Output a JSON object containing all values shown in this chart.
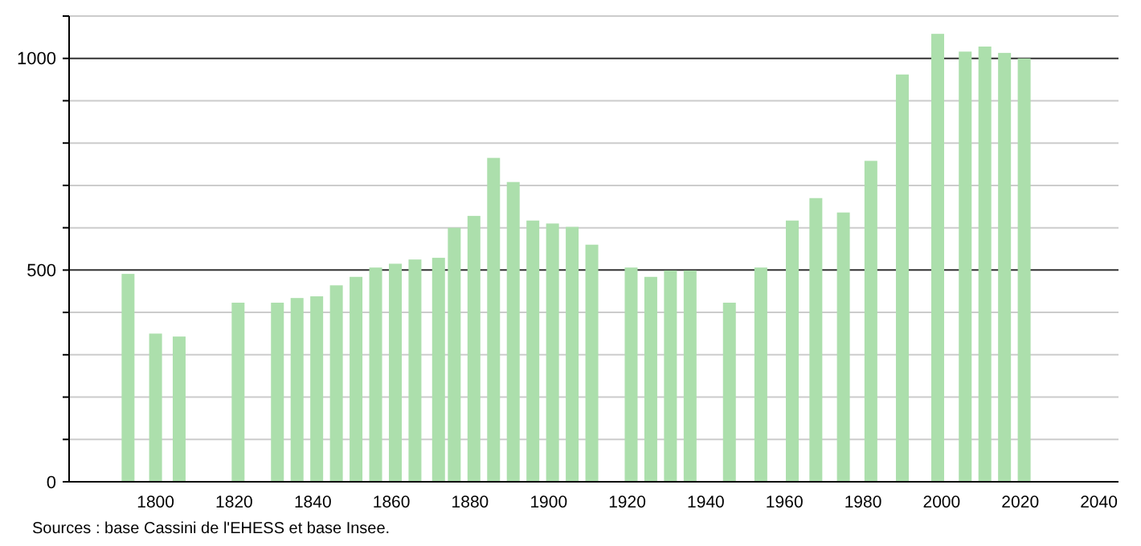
{
  "chart_data": {
    "type": "bar",
    "x": [
      1793,
      1800,
      1806,
      1821,
      1831,
      1836,
      1841,
      1846,
      1851,
      1856,
      1861,
      1866,
      1872,
      1876,
      1881,
      1886,
      1891,
      1896,
      1901,
      1906,
      1911,
      1921,
      1926,
      1931,
      1936,
      1946,
      1954,
      1962,
      1968,
      1975,
      1982,
      1990,
      1999,
      2006,
      2011,
      2016,
      2021
    ],
    "values": [
      491,
      350,
      343,
      423,
      423,
      434,
      438,
      464,
      484,
      506,
      515,
      525,
      529,
      600,
      628,
      765,
      708,
      617,
      610,
      602,
      560,
      506,
      484,
      499,
      499,
      423,
      506,
      617,
      670,
      636,
      758,
      962,
      1058,
      1016,
      1028,
      1013,
      1000
    ],
    "color": "#acdfac",
    "xlim": [
      1778,
      2045
    ],
    "xticks": [
      1800,
      1820,
      1840,
      1860,
      1880,
      1900,
      1920,
      1940,
      1960,
      1980,
      2000,
      2020,
      2040
    ],
    "ylim": [
      0,
      1100
    ],
    "yticks": [
      0,
      {
        "value": 100,
        "label": null
      },
      {
        "value": 200,
        "label": null
      },
      {
        "value": 300,
        "label": null
      },
      {
        "value": 400,
        "label": null
      },
      500,
      {
        "value": 600,
        "label": null
      },
      {
        "value": 700,
        "label": null
      },
      {
        "value": 800,
        "label": null
      },
      {
        "value": 900,
        "label": null
      },
      1000,
      {
        "value": 1100,
        "label": null
      }
    ],
    "grid": "y",
    "annotations": [
      "Sources : base Cassini de l'EHESS et base Insee."
    ]
  }
}
